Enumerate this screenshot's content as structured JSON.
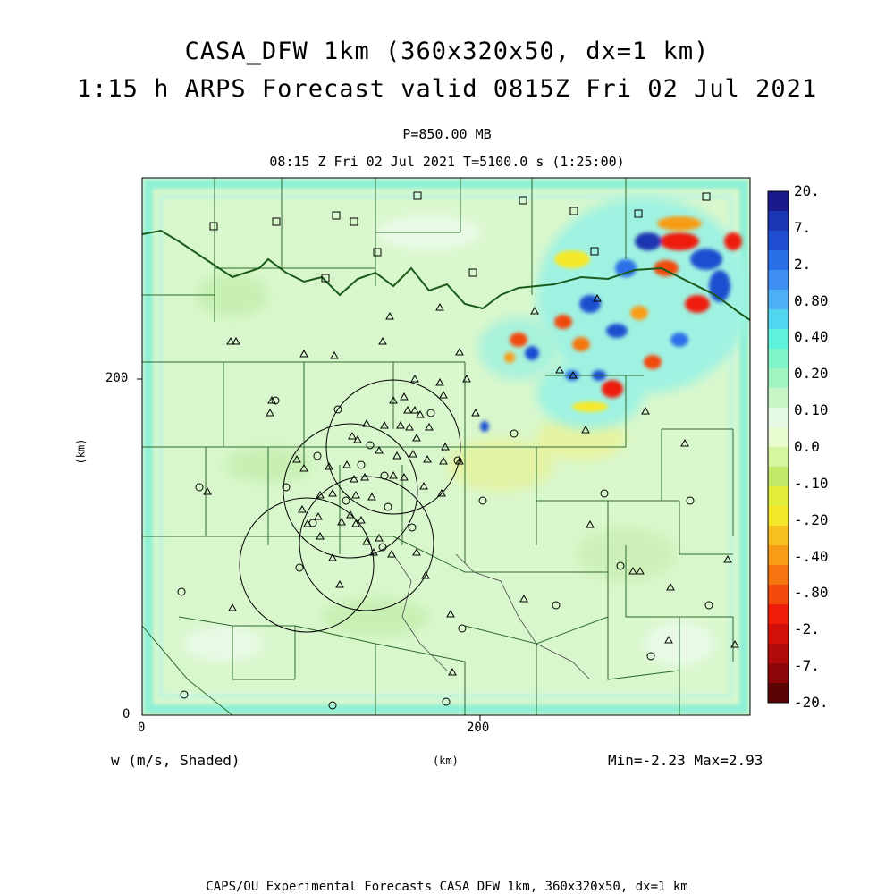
{
  "title": {
    "line1": "CASA_DFW 1km (360x320x50, dx=1 km)",
    "line2": "1:15 h ARPS Forecast valid 0815Z Fri 02 Jul 2021"
  },
  "level": "P=850.00 MB",
  "valid_time": "08:15 Z Fri 02 Jul 2021    T=5100.0 s (1:25:00)",
  "axes": {
    "xlabel": "(km)",
    "ylabel": "(km)",
    "x_ticks": [
      "0",
      "200"
    ],
    "y_ticks": [
      "0",
      "200"
    ]
  },
  "variable_label": "w (m/s, Shaded)",
  "min_max": "Min=-2.23 Max=2.93",
  "footer": "CAPS/OU Experimental Forecasts  CASA DFW 1km, 360x320x50, dx=1 km",
  "colorbar": {
    "labels": [
      "20.",
      "7.",
      "2.",
      "0.80",
      "0.40",
      "0.20",
      "0.10",
      "0.0",
      "-.10",
      "-.20",
      "-.40",
      "-.80",
      "-2.",
      "-7.",
      "-20."
    ],
    "colors": [
      "#1a1a8c",
      "#1c35b0",
      "#1f4fd0",
      "#2a6ee8",
      "#3f8ef2",
      "#4fb1f5",
      "#52d6f0",
      "#5ff2de",
      "#7ff5c8",
      "#a2f5c0",
      "#c6f6c6",
      "#e4fae4",
      "#e9fbd0",
      "#d6f5a0",
      "#c2ea6a",
      "#e2ee3a",
      "#f5e82a",
      "#f8c020",
      "#f89c18",
      "#f57410",
      "#f24a0c",
      "#ee1e0a",
      "#d2100a",
      "#b00a0a",
      "#8c0808",
      "#5a0404"
    ]
  }
}
